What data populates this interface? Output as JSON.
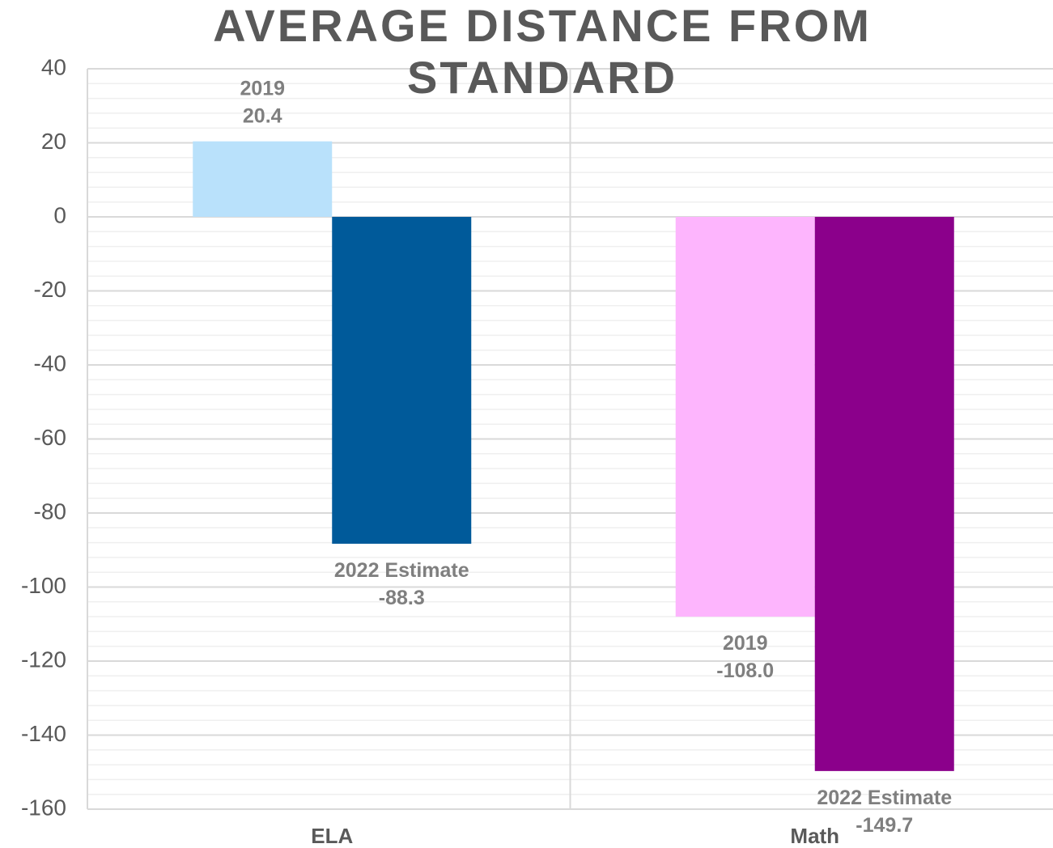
{
  "chart_data": {
    "type": "bar",
    "title": "AVERAGE DISTANCE FROM STANDARD",
    "categories": [
      "ELA",
      "Math"
    ],
    "series": [
      {
        "name": "2019",
        "colors": [
          "#b9e1fb",
          "#fdb5fd"
        ],
        "values": [
          20.4,
          -108.0
        ],
        "value_labels": [
          "20.4",
          "-108.0"
        ]
      },
      {
        "name": "2022 Estimate",
        "colors": [
          "#005a9a",
          "#8b008b"
        ],
        "values": [
          -88.3,
          -149.7
        ],
        "value_labels": [
          "-88.3",
          "-149.7"
        ]
      }
    ],
    "ylim": [
      -160,
      40
    ],
    "yticks": [
      -160,
      -140,
      -120,
      -100,
      -80,
      -60,
      -40,
      -20,
      0,
      20,
      40
    ],
    "minor_yticks": [
      -156,
      -152,
      -148,
      -144,
      -136,
      -132,
      -128,
      -124,
      -116,
      -112,
      -108,
      -104,
      -96,
      -92,
      -88,
      -84,
      -76,
      -72,
      -68,
      -64,
      -56,
      -52,
      -48,
      -44,
      -36,
      -32,
      -28,
      -24,
      -16,
      -12,
      -8,
      -4,
      4,
      8,
      12,
      16,
      24,
      28,
      32,
      36
    ],
    "grid": true,
    "legend": false
  }
}
